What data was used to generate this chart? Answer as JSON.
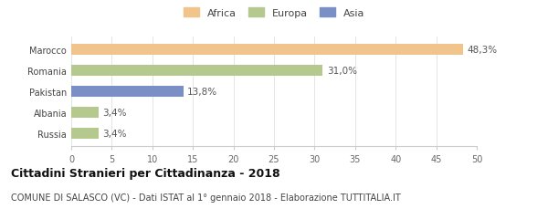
{
  "categories": [
    "Marocco",
    "Romania",
    "Pakistan",
    "Albania",
    "Russia"
  ],
  "values": [
    48.3,
    31.0,
    13.8,
    3.4,
    3.4
  ],
  "labels": [
    "48,3%",
    "31,0%",
    "13,8%",
    "3,4%",
    "3,4%"
  ],
  "colors": [
    "#f0c48a",
    "#b5c98e",
    "#7b8fc7",
    "#b5c98e",
    "#b5c98e"
  ],
  "legend": [
    {
      "label": "Africa",
      "color": "#f0c48a"
    },
    {
      "label": "Europa",
      "color": "#b5c98e"
    },
    {
      "label": "Asia",
      "color": "#7b8fc7"
    }
  ],
  "xlim": [
    0,
    50
  ],
  "xticks": [
    0,
    5,
    10,
    15,
    20,
    25,
    30,
    35,
    40,
    45,
    50
  ],
  "title": "Cittadini Stranieri per Cittadinanza - 2018",
  "subtitle": "COMUNE DI SALASCO (VC) - Dati ISTAT al 1° gennaio 2018 - Elaborazione TUTTITALIA.IT",
  "bg_color": "#ffffff",
  "bar_height": 0.5,
  "label_fontsize": 7.5,
  "tick_fontsize": 7,
  "title_fontsize": 9,
  "subtitle_fontsize": 7
}
